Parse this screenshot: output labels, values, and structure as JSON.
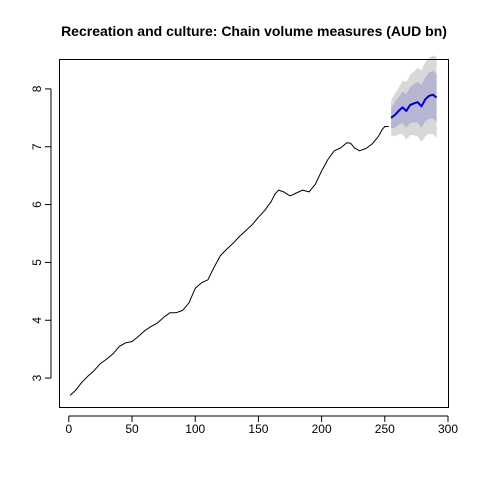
{
  "chart_data": {
    "type": "line",
    "title": "Recreation and culture: Chain volume measures (AUD bn)",
    "xlabel": "",
    "ylabel": "",
    "xlim": [
      -7,
      300
    ],
    "ylim": [
      2.5,
      8.5
    ],
    "xticks": [
      0,
      50,
      100,
      150,
      200,
      250,
      300
    ],
    "yticks": [
      3,
      4,
      5,
      6,
      7,
      8
    ],
    "grid": false,
    "legend": "none",
    "series": [
      {
        "role": "observed",
        "color": "#000000",
        "points": [
          [
            1,
            2.7
          ],
          [
            5,
            2.78
          ],
          [
            10,
            2.92
          ],
          [
            15,
            3.03
          ],
          [
            20,
            3.13
          ],
          [
            25,
            3.25
          ],
          [
            30,
            3.33
          ],
          [
            35,
            3.42
          ],
          [
            40,
            3.55
          ],
          [
            45,
            3.61
          ],
          [
            50,
            3.63
          ],
          [
            55,
            3.72
          ],
          [
            60,
            3.82
          ],
          [
            65,
            3.89
          ],
          [
            70,
            3.95
          ],
          [
            75,
            4.05
          ],
          [
            80,
            4.13
          ],
          [
            85,
            4.13
          ],
          [
            90,
            4.17
          ],
          [
            95,
            4.3
          ],
          [
            100,
            4.55
          ],
          [
            105,
            4.65
          ],
          [
            110,
            4.7
          ],
          [
            115,
            4.92
          ],
          [
            120,
            5.12
          ],
          [
            125,
            5.23
          ],
          [
            130,
            5.33
          ],
          [
            135,
            5.45
          ],
          [
            140,
            5.55
          ],
          [
            145,
            5.65
          ],
          [
            150,
            5.78
          ],
          [
            155,
            5.9
          ],
          [
            160,
            6.05
          ],
          [
            163,
            6.18
          ],
          [
            166,
            6.25
          ],
          [
            170,
            6.22
          ],
          [
            175,
            6.15
          ],
          [
            180,
            6.2
          ],
          [
            185,
            6.25
          ],
          [
            190,
            6.22
          ],
          [
            195,
            6.35
          ],
          [
            200,
            6.58
          ],
          [
            205,
            6.78
          ],
          [
            210,
            6.93
          ],
          [
            215,
            6.98
          ],
          [
            220,
            7.07
          ],
          [
            223,
            7.06
          ],
          [
            226,
            6.98
          ],
          [
            230,
            6.93
          ],
          [
            235,
            6.97
          ],
          [
            240,
            7.05
          ],
          [
            245,
            7.18
          ],
          [
            248,
            7.3
          ],
          [
            250,
            7.35
          ],
          [
            253,
            7.35
          ]
        ]
      },
      {
        "role": "forecast",
        "color": "#0000cc",
        "points": [
          [
            255,
            7.5
          ],
          [
            258,
            7.55
          ],
          [
            261,
            7.62
          ],
          [
            264,
            7.68
          ],
          [
            267,
            7.62
          ],
          [
            270,
            7.72
          ],
          [
            273,
            7.75
          ],
          [
            276,
            7.77
          ],
          [
            279,
            7.7
          ],
          [
            282,
            7.82
          ],
          [
            285,
            7.88
          ],
          [
            288,
            7.9
          ],
          [
            291,
            7.85
          ]
        ]
      }
    ],
    "intervals": [
      {
        "level": "outer",
        "color": "#d8d8d8",
        "x": [
          255,
          258,
          261,
          264,
          267,
          270,
          273,
          276,
          279,
          282,
          285,
          288,
          291
        ],
        "lower": [
          7.2,
          7.18,
          7.22,
          7.22,
          7.12,
          7.2,
          7.2,
          7.18,
          7.08,
          7.18,
          7.22,
          7.22,
          7.15
        ],
        "upper": [
          7.8,
          7.92,
          8.02,
          8.14,
          8.12,
          8.24,
          8.3,
          8.36,
          8.32,
          8.46,
          8.54,
          8.58,
          8.55
        ]
      },
      {
        "level": "inner",
        "color": "#b6b6d2",
        "x": [
          255,
          258,
          261,
          264,
          267,
          270,
          273,
          276,
          279,
          282,
          285,
          288,
          291
        ],
        "lower": [
          7.32,
          7.33,
          7.38,
          7.41,
          7.33,
          7.41,
          7.42,
          7.42,
          7.33,
          7.44,
          7.48,
          7.49,
          7.43
        ],
        "upper": [
          7.68,
          7.77,
          7.86,
          7.95,
          7.91,
          8.03,
          8.08,
          8.12,
          8.07,
          8.2,
          8.28,
          8.31,
          8.27
        ]
      }
    ]
  }
}
